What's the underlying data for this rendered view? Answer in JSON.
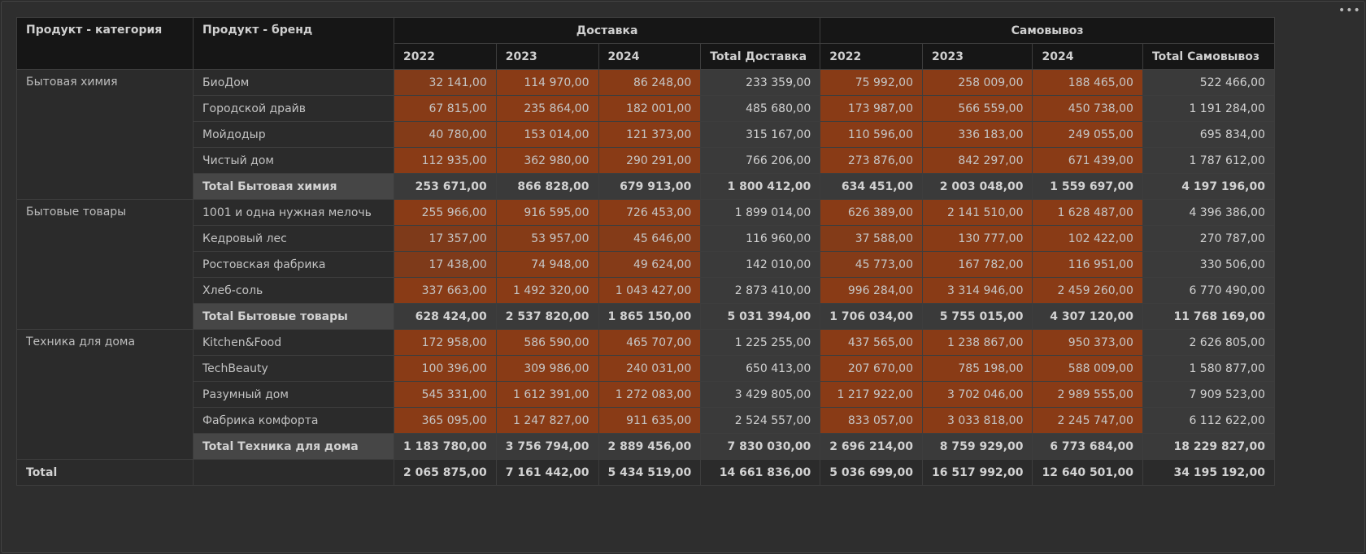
{
  "header": {
    "col_category": "Продукт - категория",
    "col_brand": "Продукт - бренд",
    "group_delivery": "Доставка",
    "group_pickup": "Самовывоз",
    "years": [
      "2022",
      "2023",
      "2024"
    ],
    "total_delivery": "Total Доставка",
    "total_pickup": "Total Самовывоз"
  },
  "colors": {
    "heat_low": "#7a3a1c",
    "heat_mid": "#8f3a12",
    "heat_high": "#6b250a"
  },
  "groups": [
    {
      "category": "Бытовая химия",
      "rows": [
        {
          "brand": "БиоДом",
          "d": [
            "32 141,00",
            "114 970,00",
            "86 248,00"
          ],
          "dt": "233 359,00",
          "p": [
            "75 992,00",
            "258 009,00",
            "188 465,00"
          ],
          "pt": "522 466,00"
        },
        {
          "brand": "Городской драйв",
          "d": [
            "67 815,00",
            "235 864,00",
            "182 001,00"
          ],
          "dt": "485 680,00",
          "p": [
            "173 987,00",
            "566 559,00",
            "450 738,00"
          ],
          "pt": "1 191 284,00"
        },
        {
          "brand": "Мойдодыр",
          "d": [
            "40 780,00",
            "153 014,00",
            "121 373,00"
          ],
          "dt": "315 167,00",
          "p": [
            "110 596,00",
            "336 183,00",
            "249 055,00"
          ],
          "pt": "695 834,00"
        },
        {
          "brand": "Чистый дом",
          "d": [
            "112 935,00",
            "362 980,00",
            "290 291,00"
          ],
          "dt": "766 206,00",
          "p": [
            "273 876,00",
            "842 297,00",
            "671 439,00"
          ],
          "pt": "1 787 612,00"
        }
      ],
      "subtotal": {
        "label": "Total Бытовая химия",
        "d": [
          "253 671,00",
          "866 828,00",
          "679 913,00"
        ],
        "dt": "1 800 412,00",
        "p": [
          "634 451,00",
          "2 003 048,00",
          "1 559 697,00"
        ],
        "pt": "4 197 196,00"
      }
    },
    {
      "category": "Бытовые товары",
      "rows": [
        {
          "brand": "1001 и одна нужная мелочь",
          "d": [
            "255 966,00",
            "916 595,00",
            "726 453,00"
          ],
          "dt": "1 899 014,00",
          "p": [
            "626 389,00",
            "2 141 510,00",
            "1 628 487,00"
          ],
          "pt": "4 396 386,00"
        },
        {
          "brand": "Кедровый лес",
          "d": [
            "17 357,00",
            "53 957,00",
            "45 646,00"
          ],
          "dt": "116 960,00",
          "p": [
            "37 588,00",
            "130 777,00",
            "102 422,00"
          ],
          "pt": "270 787,00"
        },
        {
          "brand": "Ростовская фабрика",
          "d": [
            "17 438,00",
            "74 948,00",
            "49 624,00"
          ],
          "dt": "142 010,00",
          "p": [
            "45 773,00",
            "167 782,00",
            "116 951,00"
          ],
          "pt": "330 506,00"
        },
        {
          "brand": "Хлеб-соль",
          "d": [
            "337 663,00",
            "1 492 320,00",
            "1 043 427,00"
          ],
          "dt": "2 873 410,00",
          "p": [
            "996 284,00",
            "3 314 946,00",
            "2 459 260,00"
          ],
          "pt": "6 770 490,00"
        }
      ],
      "subtotal": {
        "label": "Total Бытовые товары",
        "d": [
          "628 424,00",
          "2 537 820,00",
          "1 865 150,00"
        ],
        "dt": "5 031 394,00",
        "p": [
          "1 706 034,00",
          "5 755 015,00",
          "4 307 120,00"
        ],
        "pt": "11 768 169,00"
      }
    },
    {
      "category": "Техника для дома",
      "rows": [
        {
          "brand": "Kitchen&Food",
          "d": [
            "172 958,00",
            "586 590,00",
            "465 707,00"
          ],
          "dt": "1 225 255,00",
          "p": [
            "437 565,00",
            "1 238 867,00",
            "950 373,00"
          ],
          "pt": "2 626 805,00"
        },
        {
          "brand": "TechBeauty",
          "d": [
            "100 396,00",
            "309 986,00",
            "240 031,00"
          ],
          "dt": "650 413,00",
          "p": [
            "207 670,00",
            "785 198,00",
            "588 009,00"
          ],
          "pt": "1 580 877,00"
        },
        {
          "brand": "Разумный дом",
          "d": [
            "545 331,00",
            "1 612 391,00",
            "1 272 083,00"
          ],
          "dt": "3 429 805,00",
          "p": [
            "1 217 922,00",
            "3 702 046,00",
            "2 989 555,00"
          ],
          "pt": "7 909 523,00"
        },
        {
          "brand": "Фабрика комфорта",
          "d": [
            "365 095,00",
            "1 247 827,00",
            "911 635,00"
          ],
          "dt": "2 524 557,00",
          "p": [
            "833 057,00",
            "3 033 818,00",
            "2 245 747,00"
          ],
          "pt": "6 112 622,00"
        }
      ],
      "subtotal": {
        "label": "Total Техника для дома",
        "d": [
          "1 183 780,00",
          "3 756 794,00",
          "2 889 456,00"
        ],
        "dt": "7 830 030,00",
        "p": [
          "2 696 214,00",
          "8 759 929,00",
          "6 773 684,00"
        ],
        "pt": "18 229 827,00"
      }
    }
  ],
  "grand_total": {
    "label": "Total",
    "d": [
      "2 065 875,00",
      "7 161 442,00",
      "5 434 519,00"
    ],
    "dt": "14 661 836,00",
    "p": [
      "5 036 699,00",
      "16 517 992,00",
      "12 640 501,00"
    ],
    "pt": "34 195 192,00"
  }
}
